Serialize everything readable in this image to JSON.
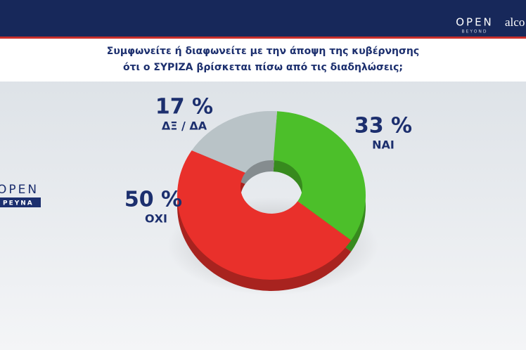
{
  "chart_data": {
    "type": "donut",
    "title": [
      "Συμφωνείτε ή διαφωνείτε με την άποψη της κυβέρνησης",
      "ότι ο ΣΥΡΙΖΑ βρίσκεται πίσω από τις διαδηλώσεις;"
    ],
    "categories": [
      "ΝΑΙ",
      "ΟΧΙ",
      "ΔΞ / ΔΑ"
    ],
    "values": [
      33,
      50,
      17
    ],
    "value_labels": [
      "33 %",
      "50 %",
      "17 %"
    ],
    "colors": [
      "#4cbf2a",
      "#e9302b",
      "#b9c3c7"
    ]
  },
  "branding": {
    "channel": "OPEN",
    "channel_sub": "BEYOND",
    "partner": "alco",
    "side": "OPEN",
    "side_sub": "ΡΕΥΝΑ"
  }
}
